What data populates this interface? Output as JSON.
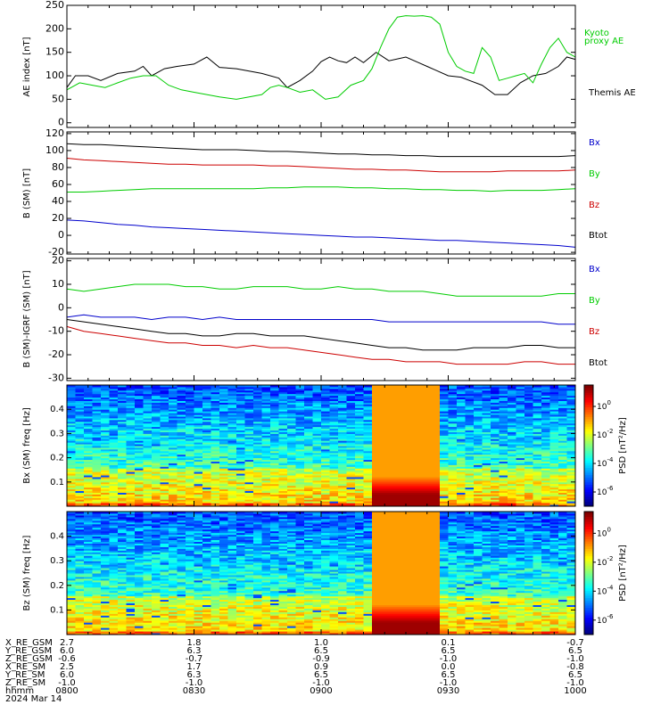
{
  "colors": {
    "black": "#000000",
    "green": "#00cc00",
    "red": "#cc0000",
    "blue": "#0000cc"
  },
  "chart_data": [
    {
      "type": "line",
      "panel": "ae",
      "ylabel": "AE index [nT]",
      "ylim": [
        -10,
        250
      ],
      "yticks": [
        0,
        50,
        100,
        150,
        200,
        250
      ],
      "x_range": [
        0,
        120
      ],
      "series": [
        {
          "name": "Themis AE",
          "color": "black",
          "x": [
            0,
            2,
            5,
            8,
            12,
            16,
            18,
            20,
            23,
            26,
            30,
            33,
            36,
            40,
            43,
            46,
            50,
            52,
            55,
            58,
            60,
            62,
            64,
            66,
            68,
            70,
            73,
            76,
            80,
            83,
            85,
            87,
            90,
            93,
            95,
            98,
            101,
            104,
            107,
            110,
            113,
            116,
            118,
            120
          ],
          "y": [
            75,
            100,
            100,
            90,
            105,
            110,
            120,
            100,
            115,
            120,
            125,
            140,
            118,
            115,
            110,
            105,
            95,
            75,
            90,
            110,
            130,
            140,
            132,
            128,
            140,
            128,
            150,
            132,
            140,
            128,
            120,
            112,
            100,
            97,
            90,
            80,
            60,
            60,
            85,
            100,
            105,
            120,
            140,
            135
          ]
        },
        {
          "name": "Kyoto proxy AE",
          "color": "green",
          "x": [
            0,
            3,
            6,
            9,
            12,
            15,
            18,
            21,
            24,
            27,
            30,
            33,
            36,
            40,
            43,
            46,
            48,
            50,
            52,
            55,
            58,
            61,
            64,
            67,
            70,
            72,
            74,
            76,
            78,
            80,
            82,
            84,
            86,
            88,
            90,
            92,
            94,
            96,
            98,
            100,
            102,
            104,
            106,
            108,
            110,
            112,
            114,
            116,
            118,
            120
          ],
          "y": [
            70,
            85,
            80,
            75,
            85,
            95,
            100,
            100,
            80,
            70,
            65,
            60,
            55,
            50,
            55,
            60,
            75,
            80,
            75,
            65,
            70,
            50,
            55,
            80,
            90,
            115,
            160,
            200,
            225,
            228,
            227,
            228,
            225,
            210,
            150,
            120,
            110,
            105,
            160,
            140,
            90,
            95,
            100,
            105,
            85,
            125,
            160,
            180,
            150,
            140
          ]
        }
      ],
      "legend_position": "right"
    },
    {
      "type": "line",
      "panel": "b",
      "ylabel": "B (SM) [nT]",
      "ylim": [
        -22,
        122
      ],
      "yticks": [
        -20,
        0,
        20,
        40,
        60,
        80,
        100,
        120
      ],
      "x_range": [
        0,
        120
      ],
      "series": [
        {
          "name": "Bx",
          "color": "blue",
          "x": [
            0,
            4,
            8,
            12,
            16,
            20,
            24,
            28,
            32,
            36,
            40,
            44,
            48,
            52,
            56,
            60,
            64,
            68,
            72,
            76,
            80,
            84,
            88,
            92,
            96,
            100,
            104,
            108,
            112,
            116,
            120
          ],
          "y": [
            18,
            17,
            15,
            13,
            12,
            10,
            9,
            8,
            7,
            6,
            5,
            4,
            3,
            2,
            1,
            0,
            -1,
            -2,
            -2,
            -3,
            -4,
            -5,
            -6,
            -6,
            -7,
            -8,
            -9,
            -10,
            -11,
            -12,
            -14
          ]
        },
        {
          "name": "By",
          "color": "green",
          "x": [
            0,
            4,
            8,
            12,
            16,
            20,
            24,
            28,
            32,
            36,
            40,
            44,
            48,
            52,
            56,
            60,
            64,
            68,
            72,
            76,
            80,
            84,
            88,
            92,
            96,
            100,
            104,
            108,
            112,
            116,
            120
          ],
          "y": [
            51,
            51,
            52,
            53,
            54,
            55,
            55,
            55,
            55,
            55,
            55,
            55,
            56,
            56,
            57,
            57,
            57,
            56,
            56,
            55,
            55,
            54,
            54,
            53,
            53,
            52,
            53,
            53,
            53,
            54,
            55
          ]
        },
        {
          "name": "Bz",
          "color": "red",
          "x": [
            0,
            4,
            8,
            12,
            16,
            20,
            24,
            28,
            32,
            36,
            40,
            44,
            48,
            52,
            56,
            60,
            64,
            68,
            72,
            76,
            80,
            84,
            88,
            92,
            96,
            100,
            104,
            108,
            112,
            116,
            120
          ],
          "y": [
            91,
            89,
            88,
            87,
            86,
            85,
            84,
            84,
            83,
            83,
            83,
            83,
            82,
            82,
            81,
            80,
            79,
            78,
            78,
            77,
            77,
            76,
            75,
            75,
            75,
            75,
            76,
            76,
            76,
            76,
            77
          ]
        },
        {
          "name": "Btot",
          "color": "black",
          "x": [
            0,
            4,
            8,
            12,
            16,
            20,
            24,
            28,
            32,
            36,
            40,
            44,
            48,
            52,
            56,
            60,
            64,
            68,
            72,
            76,
            80,
            84,
            88,
            92,
            96,
            100,
            104,
            108,
            112,
            116,
            120
          ],
          "y": [
            108,
            107,
            107,
            106,
            105,
            104,
            103,
            102,
            101,
            101,
            101,
            100,
            99,
            99,
            98,
            97,
            96,
            96,
            95,
            95,
            94,
            94,
            93,
            93,
            93,
            93,
            93,
            93,
            93,
            93,
            94
          ]
        }
      ],
      "legend_position": "right"
    },
    {
      "type": "line",
      "panel": "b-igrf",
      "ylabel": "B (SM)-IGRF (SM) [nT]",
      "ylim": [
        -31,
        21
      ],
      "yticks": [
        -30,
        -20,
        -10,
        0,
        10,
        20
      ],
      "x_range": [
        0,
        120
      ],
      "series": [
        {
          "name": "Bx",
          "color": "blue",
          "x": [
            0,
            4,
            8,
            12,
            16,
            20,
            24,
            28,
            32,
            36,
            40,
            44,
            48,
            52,
            56,
            60,
            64,
            68,
            72,
            76,
            80,
            84,
            88,
            92,
            96,
            100,
            104,
            108,
            112,
            116,
            120
          ],
          "y": [
            -4,
            -3,
            -4,
            -4,
            -4,
            -5,
            -4,
            -4,
            -5,
            -4,
            -5,
            -5,
            -5,
            -5,
            -5,
            -5,
            -5,
            -5,
            -5,
            -6,
            -6,
            -6,
            -6,
            -6,
            -6,
            -6,
            -6,
            -6,
            -6,
            -7,
            -7
          ]
        },
        {
          "name": "By",
          "color": "green",
          "x": [
            0,
            4,
            8,
            12,
            16,
            20,
            24,
            28,
            32,
            36,
            40,
            44,
            48,
            52,
            56,
            60,
            64,
            68,
            72,
            76,
            80,
            84,
            88,
            92,
            96,
            100,
            104,
            108,
            112,
            116,
            120
          ],
          "y": [
            8,
            7,
            8,
            9,
            10,
            10,
            10,
            9,
            9,
            8,
            8,
            9,
            9,
            9,
            8,
            8,
            9,
            8,
            8,
            7,
            7,
            7,
            6,
            5,
            5,
            5,
            5,
            5,
            5,
            6,
            6
          ]
        },
        {
          "name": "Bz",
          "color": "red",
          "x": [
            0,
            4,
            8,
            12,
            16,
            20,
            24,
            28,
            32,
            36,
            40,
            44,
            48,
            52,
            56,
            60,
            64,
            68,
            72,
            76,
            80,
            84,
            88,
            92,
            96,
            100,
            104,
            108,
            112,
            116,
            120
          ],
          "y": [
            -8,
            -10,
            -11,
            -12,
            -13,
            -14,
            -15,
            -15,
            -16,
            -16,
            -17,
            -16,
            -17,
            -17,
            -18,
            -19,
            -20,
            -21,
            -22,
            -22,
            -23,
            -23,
            -23,
            -24,
            -24,
            -24,
            -24,
            -23,
            -23,
            -24,
            -24
          ]
        },
        {
          "name": "Btot",
          "color": "black",
          "x": [
            0,
            4,
            8,
            12,
            16,
            20,
            24,
            28,
            32,
            36,
            40,
            44,
            48,
            52,
            56,
            60,
            64,
            68,
            72,
            76,
            80,
            84,
            88,
            92,
            96,
            100,
            104,
            108,
            112,
            116,
            120
          ],
          "y": [
            -5,
            -6,
            -7,
            -8,
            -9,
            -10,
            -11,
            -11,
            -12,
            -12,
            -11,
            -11,
            -12,
            -12,
            -12,
            -13,
            -14,
            -15,
            -16,
            -17,
            -17,
            -18,
            -18,
            -18,
            -17,
            -17,
            -17,
            -16,
            -16,
            -17,
            -17
          ]
        }
      ],
      "legend_position": "right"
    },
    {
      "type": "heatmap",
      "panel": "bx-spec",
      "ylabel": "Bx (SM) freq [Hz]",
      "ylim": [
        0,
        0.5
      ],
      "yticks": [
        0.1,
        0.2,
        0.3,
        0.4
      ],
      "colorbar": {
        "label": "PSD [nT²/Hz]",
        "range_log10": [
          -7,
          1.5
        ],
        "ticks": [
          "10^0",
          "10^-2",
          "10^-4",
          "10^-6"
        ],
        "tick_values_log10": [
          0,
          -2,
          -4,
          -6
        ]
      },
      "saturated_time_range": [
        72,
        88
      ],
      "x_range": [
        0,
        120
      ]
    },
    {
      "type": "heatmap",
      "panel": "bz-spec",
      "ylabel": "Bz (SM) freq [Hz]",
      "ylim": [
        0,
        0.5
      ],
      "yticks": [
        0.1,
        0.2,
        0.3,
        0.4
      ],
      "colorbar": {
        "label": "PSD [nT²/Hz]",
        "range_log10": [
          -7,
          1.5
        ],
        "ticks": [
          "10^0",
          "10^-2",
          "10^-4",
          "10^-6"
        ],
        "tick_values_log10": [
          0,
          -2,
          -4,
          -6
        ]
      },
      "saturated_time_range": [
        72,
        88
      ],
      "x_range": [
        0,
        120
      ]
    }
  ],
  "ae_legend": [
    {
      "text": "Kyoto",
      "color": "green"
    },
    {
      "text": "proxy AE",
      "color": "green"
    },
    {
      "text": "Themis AE",
      "color": "black"
    }
  ],
  "b_legend": [
    {
      "text": "Bx",
      "color": "blue"
    },
    {
      "text": "By",
      "color": "green"
    },
    {
      "text": "Bz",
      "color": "red"
    },
    {
      "text": "Btot",
      "color": "black"
    }
  ],
  "ephemeris": {
    "time_x": [
      0,
      30,
      60,
      90,
      120
    ],
    "rows": [
      {
        "label": "X_RE_GSM",
        "values": [
          "2.7",
          "1.8",
          "1.0",
          "0.1",
          "-0.7"
        ]
      },
      {
        "label": "Y_RE_GSM",
        "values": [
          "6.0",
          "6.3",
          "6.5",
          "6.5",
          "6.5"
        ]
      },
      {
        "label": "Z_RE_GSM",
        "values": [
          "-0.6",
          "-0.7",
          "-0.9",
          "-1.0",
          "-1.0"
        ]
      },
      {
        "label": "X_RE_SM",
        "values": [
          "2.5",
          "1.7",
          "0.9",
          "0.0",
          "-0.8"
        ]
      },
      {
        "label": "Y_RE_SM",
        "values": [
          "6.0",
          "6.3",
          "6.5",
          "6.5",
          "6.5"
        ]
      },
      {
        "label": "Z_RE_SM",
        "values": [
          "-1.0",
          "-1.0",
          "-1.0",
          "-1.0",
          "-1.0"
        ]
      },
      {
        "label": "hhmm",
        "values": [
          "0800",
          "0830",
          "0900",
          "0930",
          "1000"
        ]
      }
    ],
    "date": "2024 Mar 14"
  }
}
